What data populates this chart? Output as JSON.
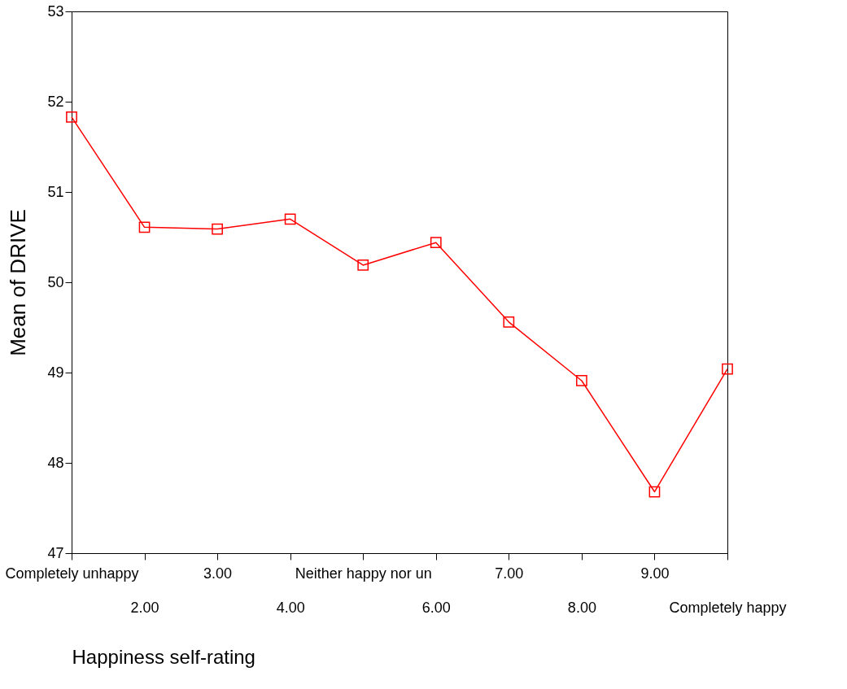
{
  "chart_data": {
    "type": "line",
    "xlabel": "Happiness self-rating",
    "ylabel": "Mean of DRIVE",
    "categories": [
      "Completely unhappy",
      "2.00",
      "3.00",
      "4.00",
      "Neither happy nor un",
      "6.00",
      "7.00",
      "8.00",
      "9.00",
      "Completely happy"
    ],
    "series": [
      {
        "color": "#ff0000",
        "values": [
          51.83,
          50.61,
          50.59,
          50.7,
          50.19,
          50.44,
          49.56,
          48.91,
          47.68,
          49.04
        ]
      }
    ],
    "ylim": [
      47,
      53
    ],
    "yticks": [
      47,
      48,
      49,
      50,
      51,
      52,
      53
    ],
    "marker": "square",
    "line_style": "solid"
  }
}
